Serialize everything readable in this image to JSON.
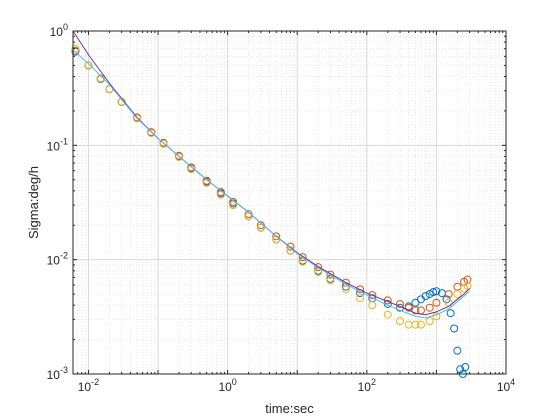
{
  "chart_data": {
    "type": "scatter",
    "title": "",
    "xlabel": "time:sec",
    "ylabel": "Sigma:deg/h",
    "xscale": "log",
    "yscale": "log",
    "xlim": [
      0.006,
      10000
    ],
    "ylim": [
      0.001,
      1
    ],
    "x_ticks": [
      {
        "value": 0.01,
        "base": "10",
        "exp": "-2"
      },
      {
        "value": 1,
        "base": "10",
        "exp": "0"
      },
      {
        "value": 100,
        "base": "10",
        "exp": "2"
      },
      {
        "value": 10000,
        "base": "10",
        "exp": "4"
      }
    ],
    "y_ticks": [
      {
        "value": 0.001,
        "base": "10",
        "exp": "-3"
      },
      {
        "value": 0.01,
        "base": "10",
        "exp": "-2"
      },
      {
        "value": 0.1,
        "base": "10",
        "exp": "-1"
      },
      {
        "value": 1,
        "base": "10",
        "exp": "0"
      }
    ],
    "grid": true,
    "minor_grid": true,
    "legend": "none",
    "series": [
      {
        "color": "#0072BD",
        "marker": "circle",
        "points": [
          [
            0.0065,
            0.66
          ],
          [
            0.01,
            0.5
          ],
          [
            0.015,
            0.38
          ],
          [
            0.02,
            0.31
          ],
          [
            0.03,
            0.24
          ],
          [
            0.05,
            0.175
          ],
          [
            0.08,
            0.13
          ],
          [
            0.12,
            0.105
          ],
          [
            0.2,
            0.08
          ],
          [
            0.3,
            0.063
          ],
          [
            0.5,
            0.048
          ],
          [
            0.8,
            0.038
          ],
          [
            1.2,
            0.031
          ],
          [
            2,
            0.024
          ],
          [
            3,
            0.019
          ],
          [
            5,
            0.015
          ],
          [
            8,
            0.012
          ],
          [
            12,
            0.0098
          ],
          [
            20,
            0.008
          ],
          [
            30,
            0.0068
          ],
          [
            50,
            0.0058
          ],
          [
            80,
            0.0051
          ],
          [
            120,
            0.0046
          ],
          [
            200,
            0.0041
          ],
          [
            300,
            0.0038
          ],
          [
            400,
            0.0039
          ],
          [
            500,
            0.0042
          ],
          [
            600,
            0.0045
          ],
          [
            700,
            0.0048
          ],
          [
            800,
            0.005
          ],
          [
            900,
            0.0052
          ],
          [
            1000,
            0.0053
          ],
          [
            1200,
            0.0051
          ],
          [
            1400,
            0.0045
          ],
          [
            1600,
            0.0034
          ],
          [
            1800,
            0.0025
          ],
          [
            2000,
            0.0016
          ],
          [
            2200,
            0.0011
          ],
          [
            2400,
            0.001
          ],
          [
            2600,
            0.00115
          ]
        ]
      },
      {
        "color": "#D95319",
        "marker": "circle",
        "points": [
          [
            0.0065,
            0.67
          ],
          [
            0.01,
            0.5
          ],
          [
            0.015,
            0.385
          ],
          [
            0.02,
            0.31
          ],
          [
            0.03,
            0.24
          ],
          [
            0.05,
            0.175
          ],
          [
            0.08,
            0.13
          ],
          [
            0.12,
            0.105
          ],
          [
            0.2,
            0.081
          ],
          [
            0.3,
            0.064
          ],
          [
            0.5,
            0.049
          ],
          [
            0.8,
            0.039
          ],
          [
            1.2,
            0.032
          ],
          [
            2,
            0.025
          ],
          [
            3,
            0.02
          ],
          [
            5,
            0.016
          ],
          [
            8,
            0.013
          ],
          [
            12,
            0.0105
          ],
          [
            20,
            0.0086
          ],
          [
            30,
            0.0074
          ],
          [
            50,
            0.0063
          ],
          [
            80,
            0.0055
          ],
          [
            120,
            0.0049
          ],
          [
            200,
            0.0044
          ],
          [
            300,
            0.0041
          ],
          [
            400,
            0.0038
          ],
          [
            500,
            0.0036
          ],
          [
            600,
            0.0036
          ],
          [
            800,
            0.0038
          ],
          [
            1000,
            0.0042
          ],
          [
            1500,
            0.005
          ],
          [
            2000,
            0.0058
          ],
          [
            2500,
            0.0064
          ],
          [
            2800,
            0.0067
          ]
        ]
      },
      {
        "color": "#EDB120",
        "marker": "circle",
        "points": [
          [
            0.0065,
            0.7
          ],
          [
            0.01,
            0.5
          ],
          [
            0.015,
            0.385
          ],
          [
            0.02,
            0.31
          ],
          [
            0.03,
            0.24
          ],
          [
            0.05,
            0.172
          ],
          [
            0.08,
            0.128
          ],
          [
            0.12,
            0.103
          ],
          [
            0.2,
            0.079
          ],
          [
            0.3,
            0.062
          ],
          [
            0.5,
            0.047
          ],
          [
            0.8,
            0.037
          ],
          [
            1.2,
            0.03
          ],
          [
            2,
            0.024
          ],
          [
            3,
            0.019
          ],
          [
            5,
            0.015
          ],
          [
            8,
            0.012
          ],
          [
            12,
            0.0096
          ],
          [
            20,
            0.0078
          ],
          [
            30,
            0.0066
          ],
          [
            50,
            0.0055
          ],
          [
            80,
            0.0046
          ],
          [
            120,
            0.004
          ],
          [
            200,
            0.0033
          ],
          [
            300,
            0.0029
          ],
          [
            400,
            0.0027
          ],
          [
            500,
            0.0027
          ],
          [
            600,
            0.0027
          ],
          [
            800,
            0.0029
          ],
          [
            1000,
            0.0032
          ],
          [
            1500,
            0.0042
          ],
          [
            2000,
            0.005
          ],
          [
            2500,
            0.0056
          ],
          [
            2800,
            0.0059
          ]
        ]
      },
      {
        "color": "#7E2F8E",
        "marker": "none",
        "line": true,
        "points": [
          [
            0.006,
            1.0
          ],
          [
            0.01,
            0.62
          ],
          [
            0.02,
            0.35
          ],
          [
            0.05,
            0.175
          ],
          [
            0.1,
            0.115
          ],
          [
            0.2,
            0.08
          ],
          [
            0.5,
            0.05
          ],
          [
            1,
            0.036
          ],
          [
            2,
            0.026
          ],
          [
            5,
            0.016
          ],
          [
            10,
            0.0115
          ],
          [
            20,
            0.0087
          ],
          [
            50,
            0.0063
          ],
          [
            100,
            0.0051
          ],
          [
            200,
            0.0043
          ],
          [
            300,
            0.0039
          ],
          [
            500,
            0.0034
          ],
          [
            700,
            0.0033
          ],
          [
            1000,
            0.0035
          ],
          [
            1500,
            0.0039
          ],
          [
            2000,
            0.0045
          ],
          [
            2500,
            0.005
          ],
          [
            3000,
            0.0056
          ]
        ]
      },
      {
        "color": "#4DBEEE",
        "marker": "none",
        "line": true,
        "points": [
          [
            0.006,
            0.68
          ],
          [
            0.01,
            0.52
          ],
          [
            0.02,
            0.34
          ],
          [
            0.05,
            0.172
          ],
          [
            0.1,
            0.115
          ],
          [
            0.2,
            0.08
          ],
          [
            0.5,
            0.05
          ],
          [
            1,
            0.036
          ],
          [
            2,
            0.026
          ],
          [
            5,
            0.016
          ],
          [
            10,
            0.0113
          ],
          [
            20,
            0.0085
          ],
          [
            50,
            0.0061
          ],
          [
            100,
            0.0049
          ],
          [
            200,
            0.004
          ],
          [
            300,
            0.0036
          ],
          [
            500,
            0.0032
          ],
          [
            700,
            0.0031
          ],
          [
            1000,
            0.0033
          ],
          [
            1500,
            0.0037
          ],
          [
            2000,
            0.0043
          ],
          [
            2500,
            0.0048
          ],
          [
            3000,
            0.0053
          ]
        ]
      }
    ]
  }
}
